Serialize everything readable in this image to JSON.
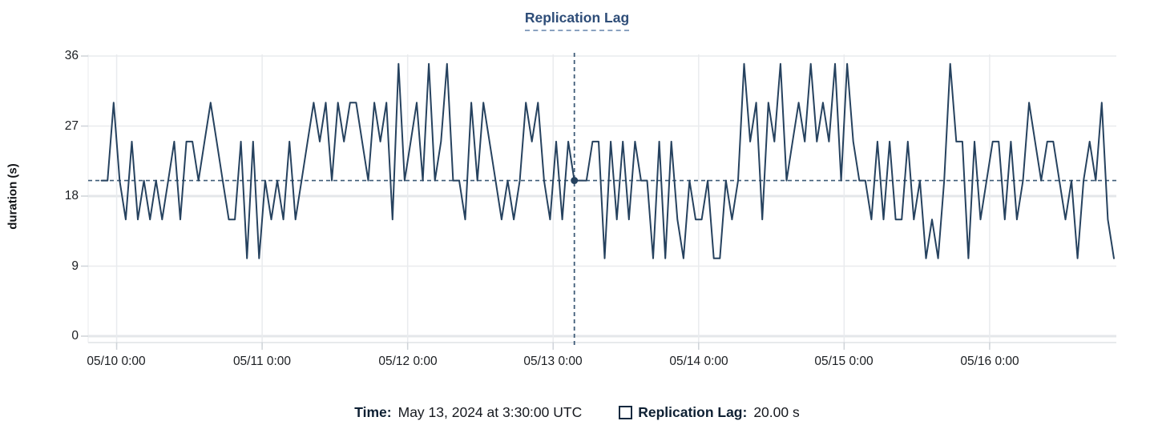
{
  "title": "Replication Lag",
  "y_axis": {
    "label": "duration (s)",
    "ticks": [
      "36",
      "27",
      "18",
      "9",
      "0"
    ]
  },
  "x_axis": {
    "ticks": [
      "05/10 0:00",
      "05/11 0:00",
      "05/12 0:00",
      "05/13 0:00",
      "05/14 0:00",
      "05/15 0:00",
      "05/16 0:00"
    ]
  },
  "tooltip": {
    "time_label": "Time:",
    "time_value": "May 13, 2024 at 3:30:00 UTC",
    "series_label": "Replication Lag:",
    "series_value": "20.00 s"
  },
  "colors": {
    "line": "#26425f",
    "title": "#2e4d78",
    "crosshair": "#3f5c78",
    "grid": "#e9ebee",
    "grid_bold": "#e4e7ea",
    "axis": "#cfd4d9",
    "text": "#16191f"
  },
  "chart_data": {
    "type": "line",
    "title": "Replication Lag",
    "xlabel": "",
    "ylabel": "duration (s)",
    "unit": "s",
    "ylim": [
      0,
      36
    ],
    "y_ticks": [
      0,
      9,
      18,
      27,
      36
    ],
    "x_tick_labels": [
      "05/10 0:00",
      "05/11 0:00",
      "05/12 0:00",
      "05/13 0:00",
      "05/14 0:00",
      "05/15 0:00",
      "05/16 0:00"
    ],
    "grid": true,
    "legend_position": "bottom",
    "series_name": "Replication Lag",
    "start_time": "2024-05-09 21:30 UTC",
    "interval_minutes": 60,
    "x_start_offset_hours": -2.5,
    "baseline_value": 20,
    "hover_point": {
      "time": "May 13, 2024 at 3:30:00 UTC",
      "offset_hours": 75.5,
      "value": 20.0
    },
    "values": [
      20,
      20,
      30,
      20,
      15,
      25,
      15,
      20,
      15,
      20,
      15,
      20,
      25,
      15,
      25,
      25,
      20,
      25,
      30,
      25,
      20,
      15,
      15,
      25,
      10,
      25,
      10,
      20,
      15,
      20,
      15,
      25,
      15,
      20,
      25,
      30,
      25,
      30,
      20,
      30,
      25,
      30,
      30,
      25,
      20,
      30,
      25,
      30,
      15,
      35,
      20,
      25,
      30,
      20,
      35,
      20,
      25,
      35,
      20,
      20,
      15,
      30,
      20,
      30,
      25,
      20,
      15,
      20,
      15,
      20,
      30,
      25,
      30,
      20,
      15,
      25,
      15,
      25,
      20,
      20,
      20,
      25,
      25,
      10,
      25,
      15,
      25,
      15,
      25,
      20,
      20,
      10,
      25,
      10,
      25,
      15,
      10,
      20,
      15,
      15,
      20,
      10,
      10,
      20,
      15,
      20,
      35,
      25,
      30,
      15,
      30,
      25,
      35,
      20,
      25,
      30,
      25,
      35,
      25,
      30,
      25,
      35,
      20,
      35,
      25,
      20,
      20,
      15,
      25,
      15,
      25,
      15,
      15,
      25,
      15,
      20,
      10,
      15,
      10,
      20,
      35,
      25,
      25,
      10,
      25,
      15,
      20,
      25,
      25,
      15,
      25,
      15,
      20,
      30,
      25,
      20,
      25,
      25,
      20,
      15,
      20,
      10,
      20,
      25,
      20,
      30,
      15,
      10
    ]
  }
}
